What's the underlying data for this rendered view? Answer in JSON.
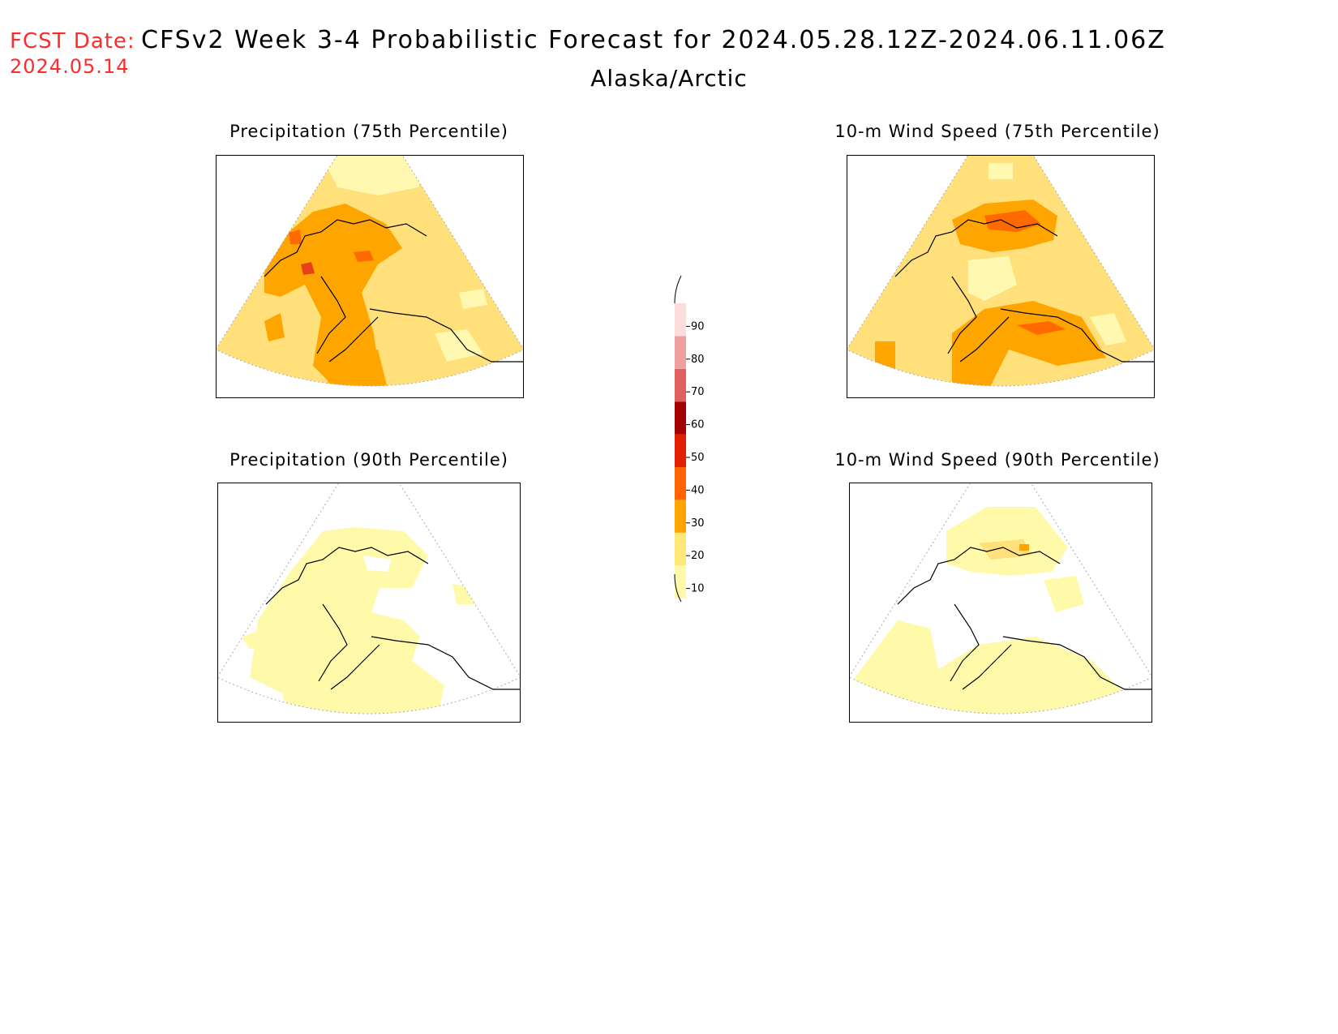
{
  "header": {
    "fcst_label": "FCST Date:",
    "fcst_date": "2024.05.14",
    "title": "CFSv2 Week 3-4 Probabilistic Forecast for 2024.05.28.12Z-2024.06.11.06Z",
    "region": "Alaska/Arctic"
  },
  "panels": [
    {
      "title": "Precipitation (75th Percentile)"
    },
    {
      "title": "10-m Wind Speed (75th Percentile)"
    },
    {
      "title": "Precipitation (90th Percentile)"
    },
    {
      "title": "10-m Wind Speed (90th Percentile)"
    }
  ],
  "colorbar": {
    "levels": [
      "10",
      "20",
      "30",
      "40",
      "50",
      "60",
      "70",
      "80",
      "90"
    ],
    "colors": [
      "#fffaaa",
      "#ffe878",
      "#ffa400",
      "#ff6400",
      "#e01e00",
      "#a50000",
      "#e06060",
      "#f0a0a0",
      "#fcdcdc"
    ]
  }
}
